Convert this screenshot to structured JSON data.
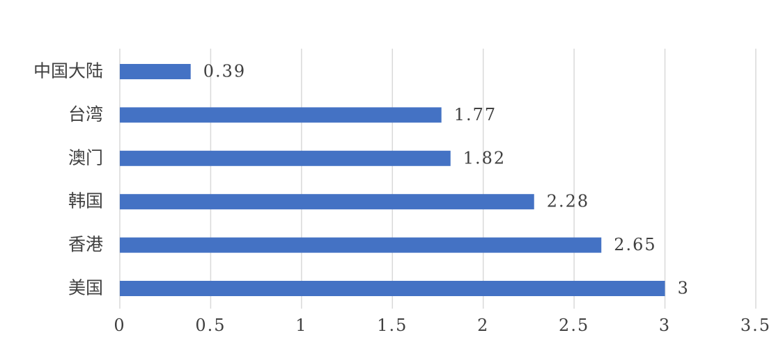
{
  "chart_data": {
    "type": "bar",
    "orientation": "horizontal",
    "title": "",
    "xlabel": "",
    "ylabel": "",
    "categories": [
      "中国大陆",
      "台湾",
      "澳门",
      "韩国",
      "香港",
      "美国"
    ],
    "values": [
      0.39,
      1.77,
      1.82,
      2.28,
      2.65,
      3
    ],
    "value_labels": [
      "0.39",
      "1.77",
      "1.82",
      "2.28",
      "2.65",
      "3"
    ],
    "xlim": [
      0,
      3.5
    ],
    "x_ticks": [
      0,
      0.5,
      1,
      1.5,
      2,
      2.5,
      3,
      3.5
    ],
    "x_tick_labels": [
      "0",
      "0.5",
      "1",
      "1.5",
      "2",
      "2.5",
      "3",
      "3.5"
    ],
    "grid": "vertical",
    "legend": "none",
    "bar_color": "#4472c4",
    "grid_color": "#d9d9d9",
    "text_color": "#404040"
  }
}
